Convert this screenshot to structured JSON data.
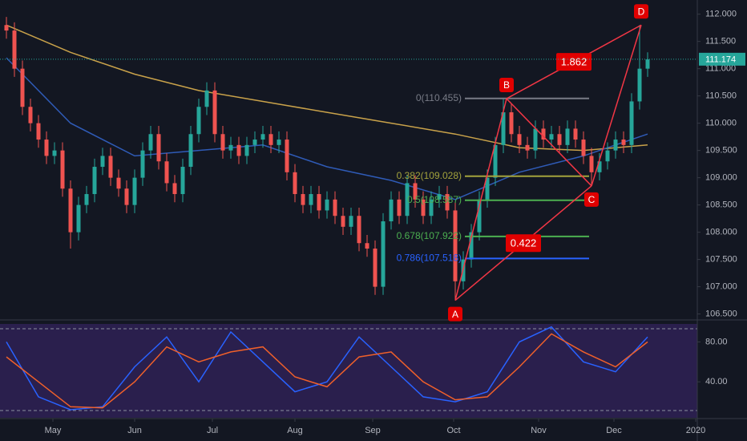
{
  "chart_data": [
    {
      "type": "candlestick",
      "open": [
        111.8,
        111.7,
        111.0,
        110.3,
        110.0,
        109.7,
        109.4,
        109.5,
        108.8,
        108.0,
        108.5,
        108.7,
        109.2,
        109.4,
        109.0,
        108.8,
        108.5,
        109.0,
        109.5,
        109.8,
        109.3,
        108.9,
        108.7,
        109.2,
        109.8,
        110.3,
        110.6,
        109.8,
        109.5,
        109.6,
        109.4,
        109.6,
        109.7,
        109.8,
        109.6,
        109.7,
        109.1,
        108.7,
        108.5,
        108.7,
        108.4,
        108.6,
        108.3,
        108.1,
        108.3,
        107.8,
        107.7,
        107.0,
        108.2,
        108.6,
        108.3,
        108.9,
        108.6,
        108.3,
        108.6,
        108.7,
        108.4,
        107.1,
        107.5,
        108.0,
        108.6,
        109.0,
        109.6,
        110.2,
        109.8,
        109.6,
        109.5,
        109.9,
        109.7,
        109.8,
        109.6,
        109.9,
        109.7,
        109.4,
        109.1,
        109.3,
        109.5,
        109.7,
        109.6,
        110.4,
        111.0
      ],
      "high": [
        111.95,
        111.85,
        111.15,
        110.45,
        110.15,
        109.85,
        109.65,
        109.65,
        108.95,
        108.65,
        108.85,
        109.35,
        109.55,
        109.55,
        109.15,
        108.95,
        109.15,
        109.65,
        109.95,
        109.95,
        109.45,
        109.05,
        109.35,
        109.95,
        110.45,
        110.75,
        110.75,
        109.95,
        109.75,
        109.75,
        109.75,
        109.85,
        109.95,
        109.95,
        109.85,
        109.85,
        109.25,
        108.85,
        108.85,
        108.85,
        108.75,
        108.75,
        108.45,
        108.45,
        108.45,
        107.95,
        107.85,
        108.35,
        108.75,
        108.75,
        109.05,
        109.05,
        108.75,
        108.75,
        108.85,
        108.85,
        108.55,
        107.65,
        108.15,
        108.75,
        109.15,
        109.75,
        110.45,
        110.35,
        109.95,
        109.75,
        110.05,
        110.05,
        109.95,
        109.95,
        110.05,
        110.05,
        109.85,
        109.55,
        109.45,
        109.65,
        109.85,
        109.85,
        110.55,
        111.8,
        111.3
      ],
      "low": [
        111.55,
        110.85,
        110.15,
        109.85,
        109.55,
        109.25,
        109.25,
        108.65,
        107.7,
        107.85,
        108.35,
        108.55,
        109.05,
        108.85,
        108.65,
        108.35,
        108.35,
        108.85,
        109.35,
        109.15,
        108.75,
        108.55,
        108.55,
        109.05,
        109.65,
        110.15,
        109.65,
        109.35,
        109.35,
        109.25,
        109.25,
        109.45,
        109.55,
        109.45,
        109.45,
        108.95,
        108.55,
        108.35,
        108.35,
        108.25,
        108.25,
        108.15,
        107.95,
        107.95,
        107.65,
        107.55,
        106.85,
        106.85,
        108.05,
        108.15,
        108.15,
        108.45,
        108.15,
        108.15,
        108.45,
        108.25,
        106.75,
        106.95,
        107.35,
        107.85,
        108.45,
        108.85,
        109.45,
        109.65,
        109.45,
        109.35,
        109.35,
        109.55,
        109.55,
        109.45,
        109.45,
        109.55,
        109.25,
        108.85,
        108.95,
        109.15,
        109.35,
        109.45,
        109.45,
        110.25,
        110.85
      ],
      "close": [
        111.7,
        111.0,
        110.3,
        110.0,
        109.7,
        109.4,
        109.5,
        108.8,
        108.0,
        108.5,
        108.7,
        109.2,
        109.4,
        109.0,
        108.8,
        108.5,
        109.0,
        109.5,
        109.8,
        109.3,
        108.9,
        108.7,
        109.2,
        109.8,
        110.3,
        110.6,
        109.8,
        109.5,
        109.6,
        109.4,
        109.6,
        109.7,
        109.8,
        109.6,
        109.7,
        109.1,
        108.7,
        108.5,
        108.7,
        108.4,
        108.6,
        108.3,
        108.1,
        108.3,
        107.8,
        107.7,
        107.0,
        108.2,
        108.6,
        108.3,
        108.9,
        108.6,
        108.3,
        108.6,
        108.7,
        108.4,
        107.1,
        107.5,
        108.0,
        108.6,
        109.0,
        109.6,
        110.2,
        109.8,
        109.6,
        109.5,
        109.9,
        109.7,
        109.8,
        109.6,
        109.9,
        109.7,
        109.4,
        109.1,
        109.3,
        109.5,
        109.7,
        109.6,
        110.4,
        111.0,
        111.17
      ],
      "up_color": "#26a69a",
      "down_color": "#ef5350",
      "series": [
        {
          "color": "#c9a24a",
          "x": [
            0,
            8,
            16,
            24,
            32,
            40,
            48,
            56,
            64,
            72,
            80
          ],
          "values": [
            111.8,
            111.3,
            110.9,
            110.6,
            110.4,
            110.2,
            110.0,
            109.8,
            109.55,
            109.5,
            109.6
          ]
        },
        {
          "color": "#2f5bb7",
          "x": [
            0,
            8,
            16,
            24,
            32,
            40,
            48,
            56,
            64,
            72,
            80
          ],
          "values": [
            111.2,
            110.0,
            109.4,
            109.5,
            109.6,
            109.2,
            108.95,
            108.6,
            109.1,
            109.4,
            109.8
          ]
        }
      ],
      "xlim": [
        -0.8,
        86.2
      ],
      "xticks": [
        {
          "value": 5.8,
          "label": "May"
        },
        {
          "value": 16,
          "label": "Jun"
        },
        {
          "value": 25.7,
          "label": "Jul"
        },
        {
          "value": 36,
          "label": "Aug"
        },
        {
          "value": 45.7,
          "label": "Sep"
        },
        {
          "value": 55.8,
          "label": "Oct"
        },
        {
          "value": 66.4,
          "label": "Nov"
        },
        {
          "value": 75.8,
          "label": "Dec"
        },
        {
          "value": 86,
          "label": "2020"
        }
      ],
      "ylim": [
        106.45,
        112.26
      ],
      "yticks": [
        {
          "value": 106.5,
          "label": "106.500"
        },
        {
          "value": 107,
          "label": "107.000"
        },
        {
          "value": 107.5,
          "label": "107.500"
        },
        {
          "value": 108,
          "label": "108.000"
        },
        {
          "value": 108.5,
          "label": "108.500"
        },
        {
          "value": 109,
          "label": "109.000"
        },
        {
          "value": 109.5,
          "label": "109.500"
        },
        {
          "value": 110,
          "label": "110.000"
        },
        {
          "value": 110.5,
          "label": "110.500"
        },
        {
          "value": 111,
          "label": "111.000"
        },
        {
          "value": 111.5,
          "label": "111.500"
        },
        {
          "value": 112,
          "label": "112.000"
        }
      ],
      "last_price": 111.174,
      "last_price_color": "#26a69a",
      "fib_x": [
        57.2,
        72.7
      ],
      "fib_levels": [
        {
          "label": "0(110.455)",
          "value": 110.455,
          "color": "#787b86"
        },
        {
          "label": "0.382(109.028)",
          "value": 109.028,
          "color": "#a3a33c"
        },
        {
          "label": "0.5(108.587)",
          "value": 108.587,
          "color": "#4caf50"
        },
        {
          "label": "0.678(107.922)",
          "value": 107.922,
          "color": "#4caf50"
        },
        {
          "label": "0.786(107.518)",
          "value": 107.518,
          "color": "#2962ff"
        }
      ],
      "pattern_color": "#f23645",
      "pattern_points": [
        {
          "label": "A",
          "x": 56,
          "y": 106.75
        },
        {
          "label": "B",
          "x": 62.4,
          "y": 110.45
        },
        {
          "label": "C",
          "x": 73,
          "y": 108.85
        },
        {
          "label": "D",
          "x": 79.2,
          "y": 111.8
        }
      ],
      "ratios": [
        1.862,
        0.422
      ]
    },
    {
      "type": "line",
      "background": "#2a1f4d",
      "xlim": [
        -0.8,
        86.2
      ],
      "ylim": [
        4,
        98
      ],
      "yticks": [
        {
          "value": 80,
          "label": "80.00"
        },
        {
          "value": 40,
          "label": "40.00"
        }
      ],
      "series": [
        {
          "color": "#2962ff",
          "x": [
            0,
            4,
            8,
            12,
            16,
            20,
            24,
            28,
            32,
            36,
            40,
            44,
            48,
            52,
            56,
            60,
            64,
            68,
            72,
            76,
            80
          ],
          "values": [
            80,
            25,
            12,
            15,
            55,
            85,
            40,
            90,
            60,
            30,
            40,
            85,
            55,
            25,
            20,
            30,
            80,
            95,
            60,
            50,
            85
          ]
        },
        {
          "color": "#f0602a",
          "x": [
            0,
            4,
            8,
            12,
            16,
            20,
            24,
            28,
            32,
            36,
            40,
            44,
            48,
            52,
            56,
            60,
            64,
            68,
            72,
            76,
            80
          ],
          "values": [
            65,
            40,
            15,
            14,
            40,
            75,
            60,
            70,
            75,
            45,
            35,
            65,
            70,
            40,
            22,
            25,
            55,
            88,
            70,
            55,
            80
          ]
        }
      ]
    }
  ]
}
